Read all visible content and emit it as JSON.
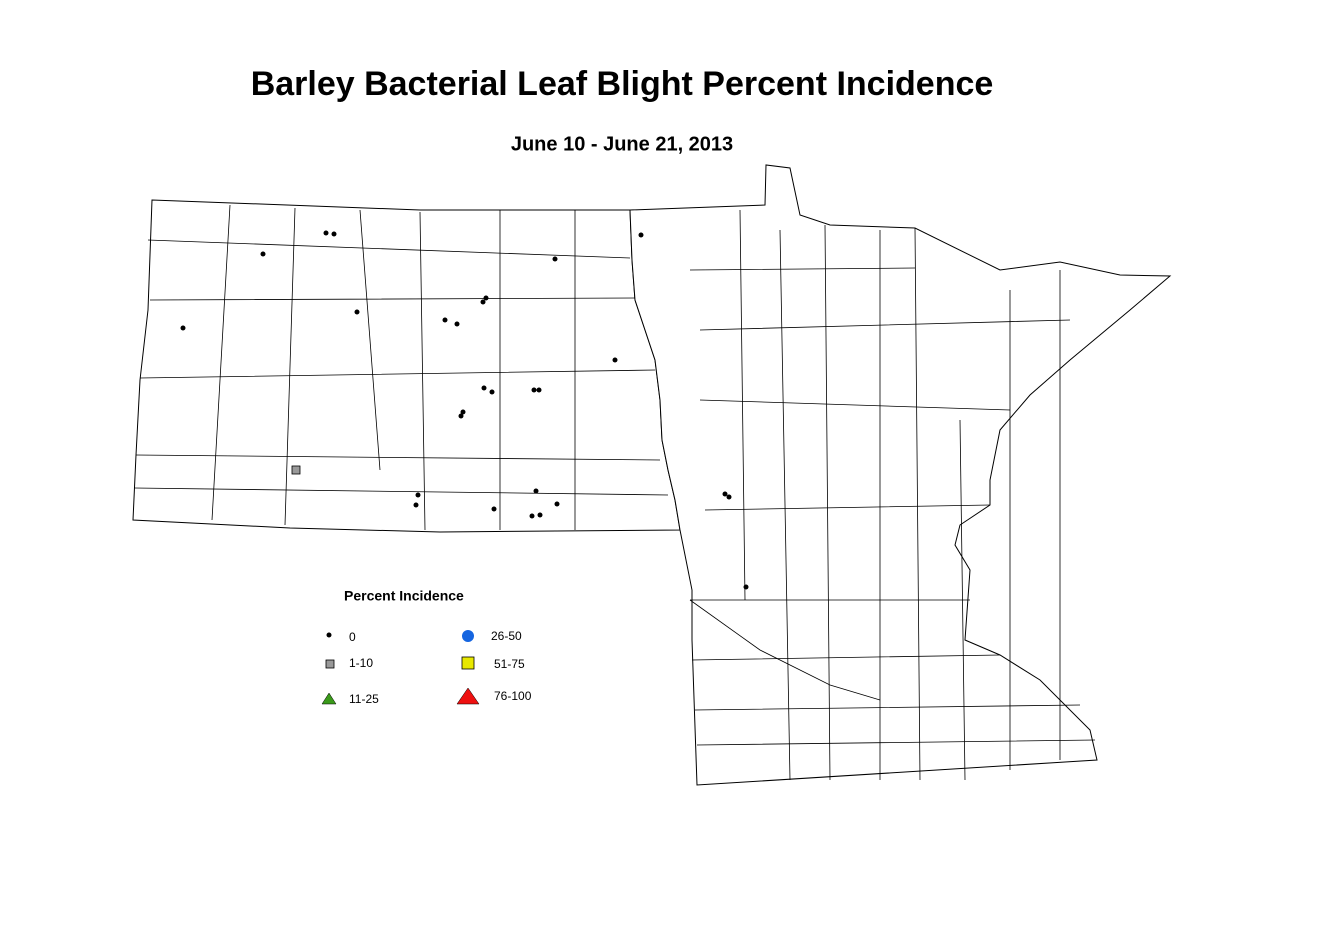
{
  "title": "Barley Bacterial Leaf Blight Percent Incidence",
  "subtitle": "June 10 - June 21, 2013",
  "legend": {
    "title": "Percent Incidence",
    "items": [
      "0",
      "1-10",
      "11-25",
      "26-50",
      "51-75",
      "76-100"
    ]
  }
}
